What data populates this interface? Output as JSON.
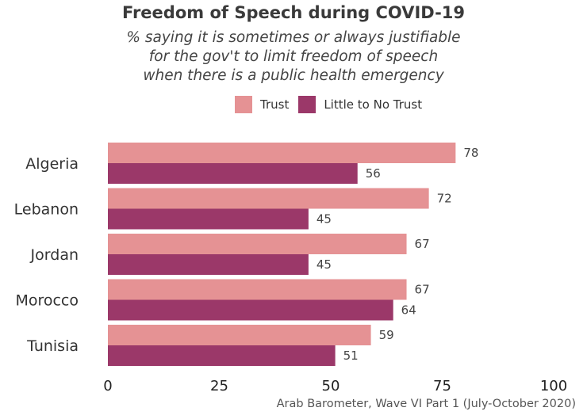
{
  "chart_data": {
    "type": "bar",
    "orientation": "horizontal",
    "title": "Freedom of Speech during COVID-19",
    "subtitle": [
      "% saying it is sometimes or always justifiable",
      "for the gov't to limit freedom of speech",
      "when there is a public health emergency"
    ],
    "categories": [
      "Algeria",
      "Lebanon",
      "Jordan",
      "Morocco",
      "Tunisia"
    ],
    "series": [
      {
        "name": "Trust",
        "color": "#e59294",
        "values": [
          78,
          72,
          67,
          67,
          59
        ]
      },
      {
        "name": "Little to No Trust",
        "color": "#9b3869",
        "values": [
          56,
          45,
          45,
          64,
          51
        ]
      }
    ],
    "xlim": [
      0,
      100
    ],
    "xticks": [
      0,
      25,
      50,
      75,
      100
    ],
    "grid": false,
    "legend_position": "top",
    "caption": "Arab Barometer, Wave VI Part 1 (July-October 2020)"
  }
}
